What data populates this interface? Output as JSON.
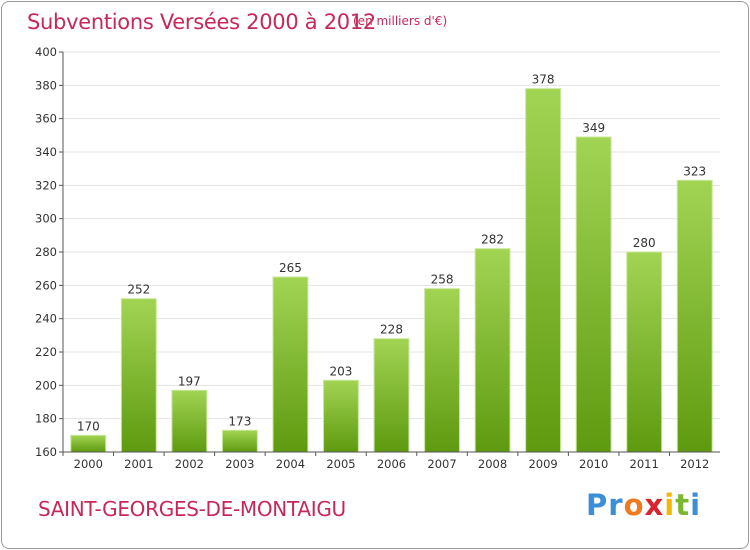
{
  "header": {
    "title": "Subventions Versées 2000 à 2012",
    "subtitle": "(en milliers d'€)"
  },
  "footer": {
    "commune": "SAINT-GEORGES-DE-MONTAIGU",
    "logo_letters": [
      "P",
      "r",
      "o",
      "x",
      "i",
      "t",
      "i"
    ],
    "logo_colors": [
      "#3a8fd6",
      "#3a8fd6",
      "#f07a1e",
      "#d9232e",
      "#f2b705",
      "#7ab82e",
      "#3a8fd6"
    ]
  },
  "chart_data": {
    "type": "bar",
    "title": "Subventions Versées 2000 à 2012",
    "subtitle": "(en milliers d'€)",
    "categories": [
      "2000",
      "2001",
      "2002",
      "2003",
      "2004",
      "2005",
      "2006",
      "2007",
      "2008",
      "2009",
      "2010",
      "2011",
      "2012"
    ],
    "values": [
      170,
      252,
      197,
      173,
      265,
      203,
      228,
      258,
      282,
      378,
      349,
      280,
      323
    ],
    "ylim": [
      160,
      400
    ],
    "yticks": [
      160,
      180,
      200,
      220,
      240,
      260,
      280,
      300,
      320,
      340,
      360,
      380,
      400
    ],
    "grid": true,
    "legend": "none",
    "colors": {
      "bar_top": "#a2d454",
      "bar_bottom": "#5e9a10",
      "grid": "#e3e3e3",
      "axis": "#555555"
    }
  }
}
